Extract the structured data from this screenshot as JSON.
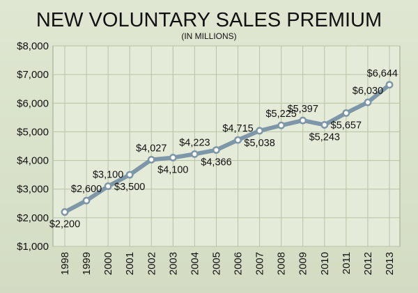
{
  "chart_data": {
    "type": "line",
    "title": "NEW VOLUNTARY SALES PREMIUM",
    "subtitle": "(IN MILLIONS)",
    "xlabel": "",
    "ylabel": "",
    "x": [
      "1998",
      "1999",
      "2000",
      "2001",
      "2002",
      "2003",
      "2004",
      "2005",
      "2006",
      "2007",
      "2008",
      "2009",
      "2010",
      "2011",
      "2012",
      "2013"
    ],
    "series": [
      {
        "values": [
          2200,
          2600,
          3100,
          3500,
          4027,
          4100,
          4223,
          4366,
          4715,
          5038,
          5225,
          5397,
          5243,
          5657,
          6030,
          6644
        ],
        "labels": [
          "$2,200",
          "$2,600",
          "$3,100",
          "$3,500",
          "$4,027",
          "$4,100",
          "$4,223",
          "$4,366",
          "$4,715",
          "$5,038",
          "$5,225",
          "$5,397",
          "$5,243",
          "$5,657",
          "$6,030",
          "$6,644"
        ],
        "label_side": [
          "below",
          "above",
          "above",
          "below",
          "above",
          "below",
          "above",
          "below",
          "above",
          "below",
          "above",
          "above",
          "below",
          "below",
          "above",
          "above"
        ]
      }
    ],
    "ylim": [
      1000,
      8000
    ],
    "yticks": [
      1000,
      2000,
      3000,
      4000,
      5000,
      6000,
      7000,
      8000
    ],
    "ytick_labels": [
      "$1,000",
      "$2,000",
      "$3,000",
      "$4,000",
      "$5,000",
      "$6,000",
      "$7,000",
      "$8,000"
    ],
    "grid": true,
    "legend": "none",
    "colors": {
      "background": "#d8e0c9",
      "plot_background": "#e4ebd9",
      "line": "#7d97a8",
      "marker_fill": "#ffffff",
      "grid": "#b7c2a6"
    }
  }
}
